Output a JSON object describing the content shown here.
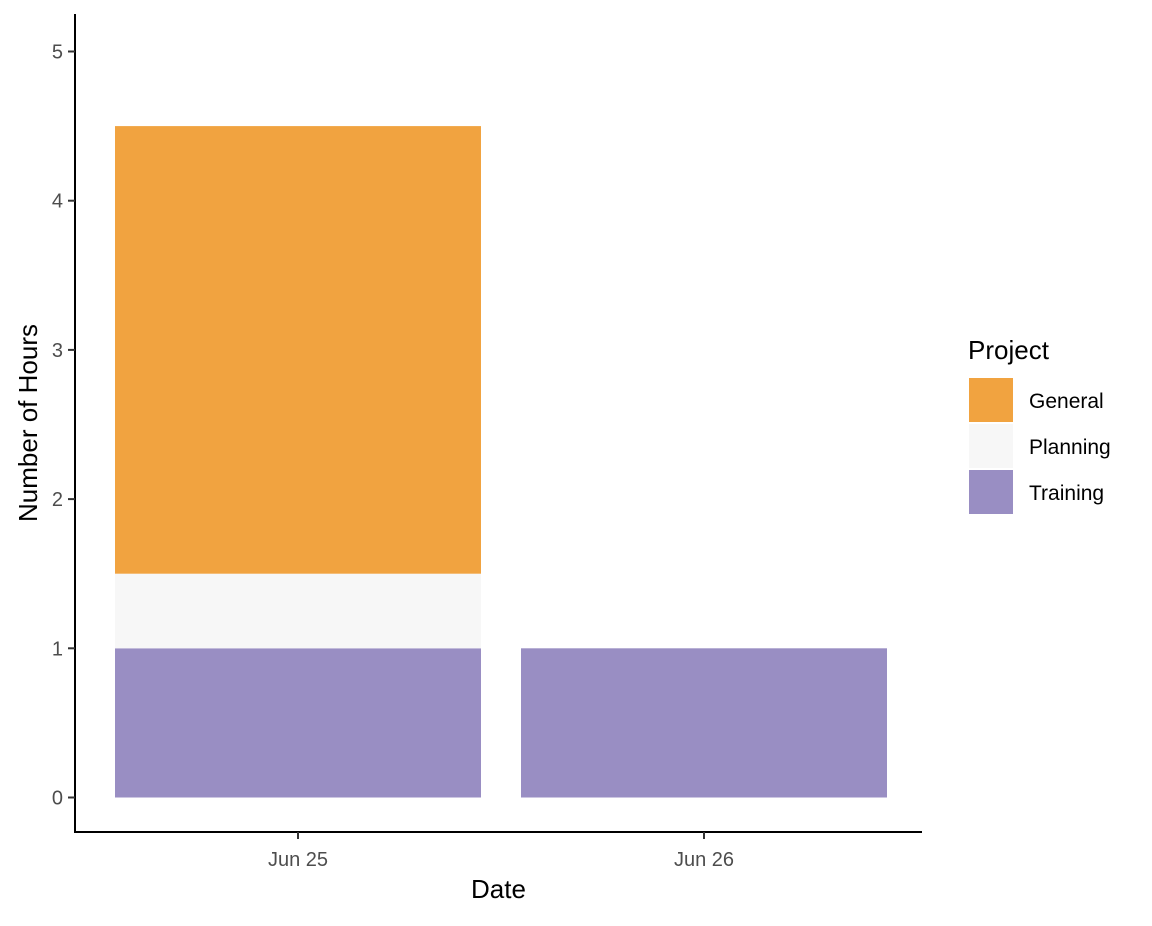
{
  "chart_data": {
    "type": "bar",
    "stacked": true,
    "title": "",
    "xlabel": "Date",
    "ylabel": "Number of Hours",
    "ylim": [
      0,
      5.2
    ],
    "yticks": [
      "0",
      "1",
      "2",
      "3",
      "4",
      "5"
    ],
    "grid": false,
    "categories": [
      "Jun 25",
      "Jun 26"
    ],
    "series": [
      {
        "name": "Training",
        "color": "#998ec3",
        "values": [
          1,
          1
        ]
      },
      {
        "name": "Planning",
        "color": "#f7f7f7",
        "values": [
          0.5,
          0
        ]
      },
      {
        "name": "General",
        "color": "#f1a340",
        "values": [
          3,
          0
        ]
      }
    ],
    "legend": {
      "title": "Project",
      "position": "right",
      "entries": [
        {
          "label": "General",
          "color": "#f1a340"
        },
        {
          "label": "Planning",
          "color": "#f7f7f7"
        },
        {
          "label": "Training",
          "color": "#998ec3"
        }
      ]
    }
  }
}
